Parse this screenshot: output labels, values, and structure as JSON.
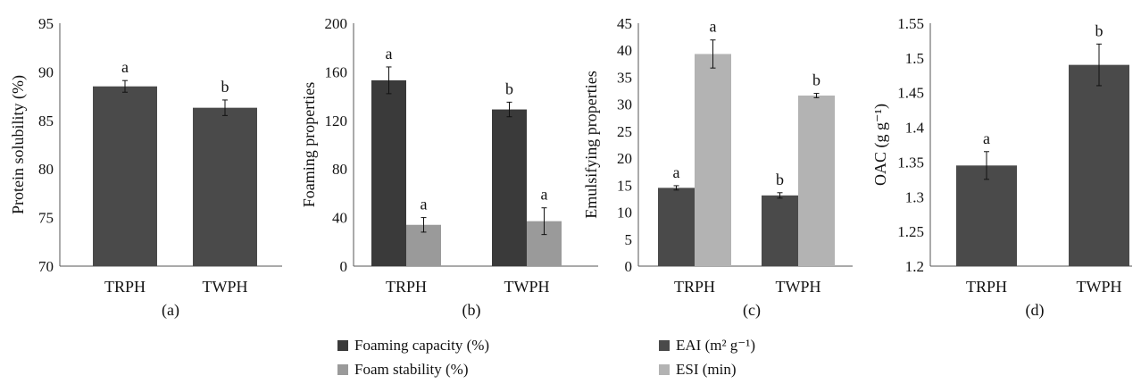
{
  "chart_data": [
    {
      "type": "bar",
      "panel_label": "(a)",
      "ylabel": "Protein solubility (%)",
      "categories": [
        "TRPH",
        "TWPH"
      ],
      "ylim": [
        70,
        95
      ],
      "yticks": [
        "70",
        "75",
        "80",
        "85",
        "90",
        "95"
      ],
      "series": [
        {
          "values": [
            88.5,
            86.3
          ],
          "errors": [
            0.6,
            0.8
          ],
          "letters": [
            "a",
            "b"
          ],
          "color": "#4a4a4a"
        }
      ]
    },
    {
      "type": "bar",
      "panel_label": "(b)",
      "ylabel": "Foaming properties",
      "categories": [
        "TRPH",
        "TWPH"
      ],
      "ylim": [
        0,
        200
      ],
      "yticks": [
        "0",
        "40",
        "80",
        "120",
        "160",
        "200"
      ],
      "series": [
        {
          "name": "Foaming capacity (%)",
          "values": [
            153,
            129
          ],
          "errors": [
            11,
            6
          ],
          "letters": [
            "a",
            "b"
          ],
          "color": "#3a3a3a"
        },
        {
          "name": "Foam stability (%)",
          "values": [
            34,
            37
          ],
          "errors": [
            6,
            11
          ],
          "letters": [
            "a",
            "a"
          ],
          "color": "#9a9a9a"
        }
      ]
    },
    {
      "type": "bar",
      "panel_label": "(c)",
      "ylabel": "Emulsifying properties",
      "categories": [
        "TRPH",
        "TWPH"
      ],
      "ylim": [
        0,
        45
      ],
      "yticks": [
        "0",
        "5",
        "10",
        "15",
        "20",
        "25",
        "30",
        "35",
        "40",
        "45"
      ],
      "series": [
        {
          "name": "EAI (m² g⁻¹)",
          "values": [
            14.5,
            13.1
          ],
          "errors": [
            0.4,
            0.5
          ],
          "letters": [
            "a",
            "b"
          ],
          "color": "#4a4a4a"
        },
        {
          "name": "ESI (min)",
          "values": [
            39.3,
            31.6
          ],
          "errors": [
            2.6,
            0.4
          ],
          "letters": [
            "a",
            "b"
          ],
          "color": "#b3b3b3"
        }
      ]
    },
    {
      "type": "bar",
      "panel_label": "(d)",
      "ylabel": "OAC (g g⁻¹)",
      "categories": [
        "TRPH",
        "TWPH"
      ],
      "ylim": [
        1.2,
        1.55
      ],
      "yticks": [
        "1.2",
        "1.25",
        "1.3",
        "1.35",
        "1.4",
        "1.45",
        "1.5",
        "1.55"
      ],
      "series": [
        {
          "values": [
            1.345,
            1.49
          ],
          "errors": [
            0.02,
            0.03
          ],
          "letters": [
            "a",
            "b"
          ],
          "color": "#4a4a4a"
        }
      ]
    }
  ],
  "legends": {
    "b": [
      "Foaming capacity (%)",
      "Foam stability (%)"
    ],
    "c": [
      "EAI (m² g⁻¹)",
      "ESI (min)"
    ]
  }
}
